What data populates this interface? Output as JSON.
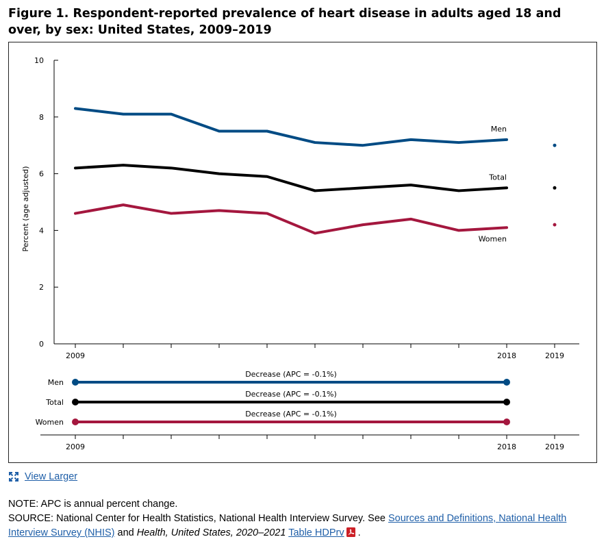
{
  "title": "Figure 1. Respondent-reported prevalence of heart disease in adults aged 18 and over, by sex: United States, 2009–2019",
  "view_larger": "View Larger",
  "note": "NOTE: APC is annual percent change.",
  "source": {
    "prefix": "SOURCE: National Center for Health Statistics, National Health Interview Survey. See ",
    "link1": "Sources and Definitions, National Health Interview Survey (NHIS)",
    "middle": " and ",
    "italic": "Health, United States, 2020–2021",
    "link2": "Table HDPrv",
    "end": " ."
  },
  "colors": {
    "men": "#004b84",
    "total": "#000000",
    "women": "#a4173e",
    "pdf": "#cc2027"
  },
  "chart_data": [
    {
      "type": "line",
      "title": "",
      "xlabel": "",
      "ylabel": "Percent (age adjusted)",
      "x": [
        2009,
        2010,
        2011,
        2012,
        2013,
        2014,
        2015,
        2016,
        2017,
        2018
      ],
      "x_tick_labels": [
        "2009",
        "2018",
        "2019"
      ],
      "ylim": [
        0,
        10
      ],
      "y_ticks": [
        0,
        2,
        4,
        6,
        8,
        10
      ],
      "grid": false,
      "series": [
        {
          "name": "Men",
          "color": "#004b84",
          "values": [
            8.3,
            8.1,
            8.1,
            7.5,
            7.5,
            7.1,
            7.0,
            7.2,
            7.1,
            7.2
          ],
          "point_2019": 7.0
        },
        {
          "name": "Total",
          "color": "#000000",
          "values": [
            6.2,
            6.3,
            6.2,
            6.0,
            5.9,
            5.4,
            5.5,
            5.6,
            5.4,
            5.5
          ],
          "point_2019": 5.5
        },
        {
          "name": "Women",
          "color": "#a4173e",
          "values": [
            4.6,
            4.9,
            4.6,
            4.7,
            4.6,
            3.9,
            4.2,
            4.4,
            4.0,
            4.1
          ],
          "point_2019": 4.2
        }
      ]
    },
    {
      "type": "trend",
      "x_tick_labels": [
        "2009",
        "2018",
        "2019"
      ],
      "rows": [
        {
          "name": "Men",
          "color": "#004b84",
          "start": 2009,
          "end": 2018,
          "label": "Decrease (APC = -0.1%)"
        },
        {
          "name": "Total",
          "color": "#000000",
          "start": 2009,
          "end": 2018,
          "label": "Decrease (APC = -0.1%)"
        },
        {
          "name": "Women",
          "color": "#a4173e",
          "start": 2009,
          "end": 2018,
          "label": "Decrease (APC = -0.1%)"
        }
      ]
    }
  ]
}
